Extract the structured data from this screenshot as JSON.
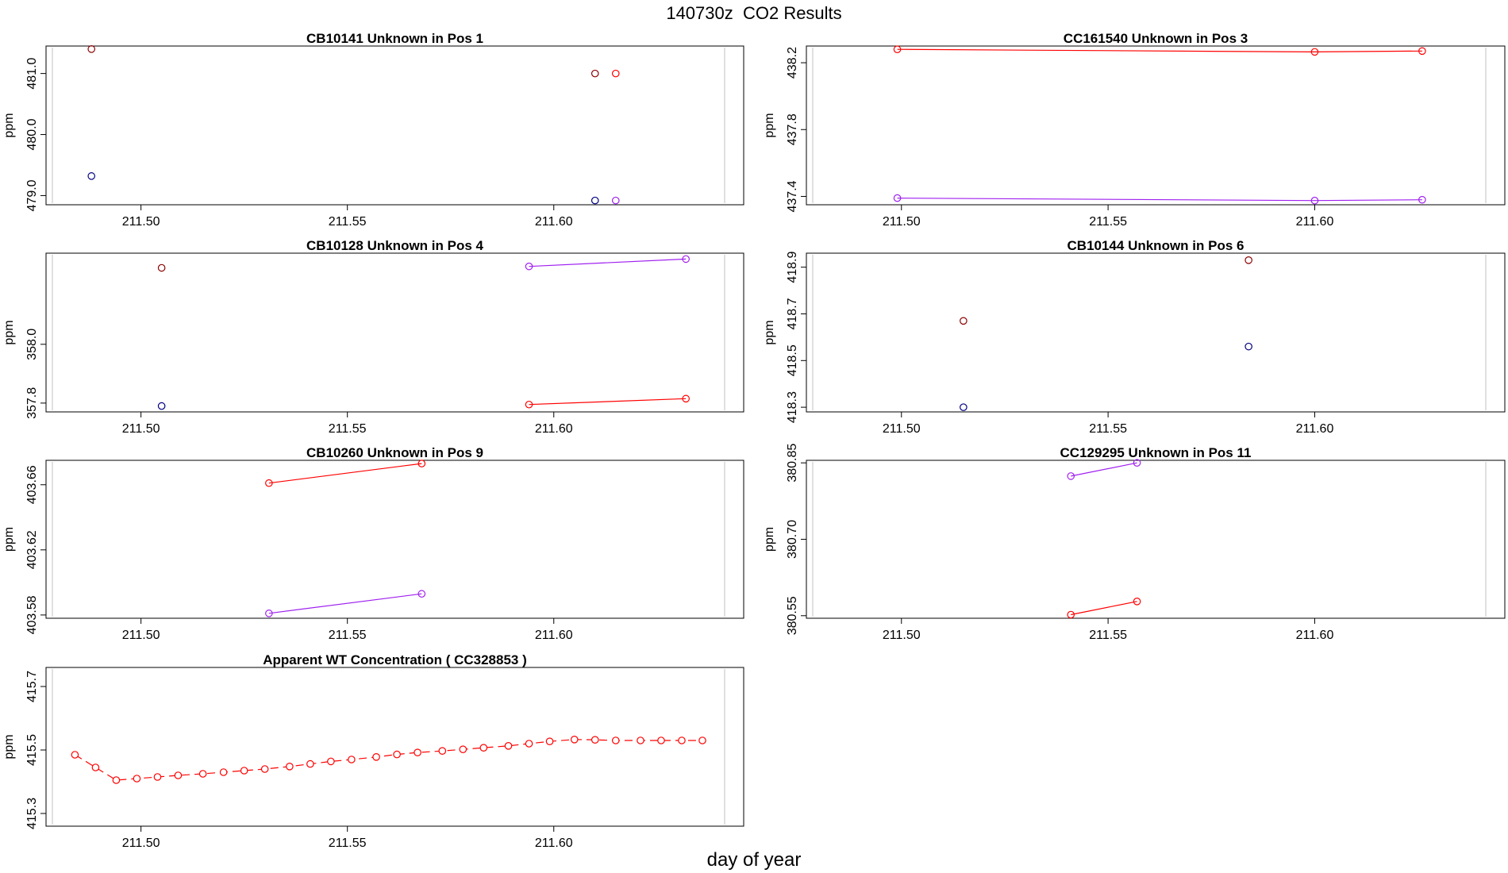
{
  "figure": {
    "title": "140730z  CO2 Results",
    "xlabel": "day of year"
  },
  "colors": {
    "red": "#ff0000",
    "purple": "#a020f0",
    "dark_red": "#8b0000",
    "navy": "#000080",
    "axes": "#000000",
    "right_rule": "#c0c0c0"
  },
  "chart_data": [
    {
      "type": "line",
      "title": "CB10141    Unknown in Pos 1",
      "xlabel": "",
      "ylabel": "ppm",
      "xlim": [
        211.477,
        211.646
      ],
      "ylim": [
        478.85,
        481.45
      ],
      "xticks": [
        "211.50",
        "211.55",
        "211.60"
      ],
      "yticks": [
        "479.0",
        "480.0",
        "481.0"
      ],
      "series": [
        {
          "name": "dark_red",
          "color": "#8b0000",
          "connected": false,
          "x": [
            211.488,
            211.61
          ],
          "y": [
            481.4,
            481.0
          ]
        },
        {
          "name": "navy",
          "color": "#000080",
          "connected": false,
          "x": [
            211.488,
            211.61
          ],
          "y": [
            479.32,
            478.92
          ]
        },
        {
          "name": "red",
          "color": "#ff0000",
          "connected": false,
          "x": [
            211.615
          ],
          "y": [
            481.0
          ]
        },
        {
          "name": "purple",
          "color": "#a020f0",
          "connected": false,
          "x": [
            211.615
          ],
          "y": [
            478.92
          ]
        }
      ]
    },
    {
      "type": "line",
      "title": "CC161540    Unknown in Pos 3",
      "xlabel": "",
      "ylabel": "ppm",
      "xlim": [
        211.477,
        211.646
      ],
      "ylim": [
        437.35,
        438.3
      ],
      "xticks": [
        "211.50",
        "211.55",
        "211.60"
      ],
      "yticks": [
        "437.4",
        "437.8",
        "438.2"
      ],
      "series": [
        {
          "name": "red",
          "color": "#ff0000",
          "connected": true,
          "x": [
            211.499,
            211.6,
            211.626
          ],
          "y": [
            438.28,
            438.265,
            438.27
          ]
        },
        {
          "name": "purple",
          "color": "#a020f0",
          "connected": true,
          "x": [
            211.499,
            211.6,
            211.626
          ],
          "y": [
            437.39,
            437.375,
            437.38
          ]
        }
      ]
    },
    {
      "type": "line",
      "title": "CB10128    Unknown in Pos 4",
      "xlabel": "",
      "ylabel": "ppm",
      "xlim": [
        211.477,
        211.646
      ],
      "ylim": [
        357.77,
        358.31
      ],
      "xticks": [
        "211.50",
        "211.55",
        "211.60"
      ],
      "yticks": [
        "357.8",
        "358.0"
      ],
      "series": [
        {
          "name": "dark_red",
          "color": "#8b0000",
          "connected": false,
          "x": [
            211.505
          ],
          "y": [
            358.26
          ]
        },
        {
          "name": "navy",
          "color": "#000080",
          "connected": false,
          "x": [
            211.505
          ],
          "y": [
            357.79
          ]
        },
        {
          "name": "purple",
          "color": "#a020f0",
          "connected": true,
          "x": [
            211.594,
            211.632
          ],
          "y": [
            358.265,
            358.29
          ]
        },
        {
          "name": "red",
          "color": "#ff0000",
          "connected": true,
          "x": [
            211.594,
            211.632
          ],
          "y": [
            357.795,
            357.815
          ]
        }
      ]
    },
    {
      "type": "line",
      "title": "CB10144    Unknown in Pos 6",
      "xlabel": "",
      "ylabel": "ppm",
      "xlim": [
        211.477,
        211.646
      ],
      "ylim": [
        418.28,
        418.96
      ],
      "xticks": [
        "211.50",
        "211.55",
        "211.60"
      ],
      "yticks": [
        "418.3",
        "418.5",
        "418.7",
        "418.9"
      ],
      "series": [
        {
          "name": "dark_red",
          "color": "#8b0000",
          "connected": false,
          "x": [
            211.515,
            211.584
          ],
          "y": [
            418.67,
            418.93
          ]
        },
        {
          "name": "navy",
          "color": "#000080",
          "connected": false,
          "x": [
            211.515,
            211.584
          ],
          "y": [
            418.3,
            418.56
          ]
        }
      ]
    },
    {
      "type": "line",
      "title": "CB10260    Unknown in Pos 9",
      "xlabel": "",
      "ylabel": "ppm",
      "xlim": [
        211.477,
        211.646
      ],
      "ylim": [
        403.578,
        403.675
      ],
      "xticks": [
        "211.50",
        "211.55",
        "211.60"
      ],
      "yticks": [
        "403.58",
        "403.62",
        "403.66"
      ],
      "series": [
        {
          "name": "red",
          "color": "#ff0000",
          "connected": true,
          "x": [
            211.531,
            211.568
          ],
          "y": [
            403.661,
            403.673
          ]
        },
        {
          "name": "purple",
          "color": "#a020f0",
          "connected": true,
          "x": [
            211.531,
            211.568
          ],
          "y": [
            403.581,
            403.593
          ]
        }
      ]
    },
    {
      "type": "line",
      "title": "CC129295    Unknown in Pos 11",
      "xlabel": "",
      "ylabel": "ppm",
      "xlim": [
        211.477,
        211.646
      ],
      "ylim": [
        380.545,
        380.855
      ],
      "xticks": [
        "211.50",
        "211.55",
        "211.60"
      ],
      "yticks": [
        "380.55",
        "380.70",
        "380.85"
      ],
      "series": [
        {
          "name": "purple",
          "color": "#a020f0",
          "connected": true,
          "x": [
            211.541,
            211.557
          ],
          "y": [
            380.824,
            380.85
          ]
        },
        {
          "name": "red",
          "color": "#ff0000",
          "connected": true,
          "x": [
            211.541,
            211.557
          ],
          "y": [
            380.552,
            380.578
          ]
        }
      ]
    },
    {
      "type": "line",
      "title": "Apparent WT Concentration ( CC328853 )",
      "xlabel": "",
      "ylabel": "ppm",
      "xlim": [
        211.477,
        211.646
      ],
      "ylim": [
        415.26,
        415.76
      ],
      "xticks": [
        "211.50",
        "211.55",
        "211.60"
      ],
      "yticks": [
        "415.3",
        "415.5",
        "415.7"
      ],
      "series": [
        {
          "name": "red",
          "color": "#ff0000",
          "connected": true,
          "dashed": true,
          "x": [
            211.484,
            211.489,
            211.494,
            211.499,
            211.504,
            211.509,
            211.515,
            211.52,
            211.525,
            211.53,
            211.536,
            211.541,
            211.546,
            211.551,
            211.557,
            211.562,
            211.567,
            211.573,
            211.578,
            211.583,
            211.589,
            211.594,
            211.599,
            211.605,
            211.61,
            211.615,
            211.621,
            211.626,
            211.631,
            211.636
          ],
          "y": [
            415.485,
            415.445,
            415.405,
            415.41,
            415.415,
            415.42,
            415.425,
            415.43,
            415.435,
            415.44,
            415.448,
            415.456,
            415.464,
            415.47,
            415.478,
            415.486,
            415.492,
            415.497,
            415.502,
            415.507,
            415.513,
            415.52,
            415.527,
            415.533,
            415.532,
            415.53,
            415.53,
            415.53,
            415.53,
            415.53
          ]
        }
      ]
    }
  ]
}
